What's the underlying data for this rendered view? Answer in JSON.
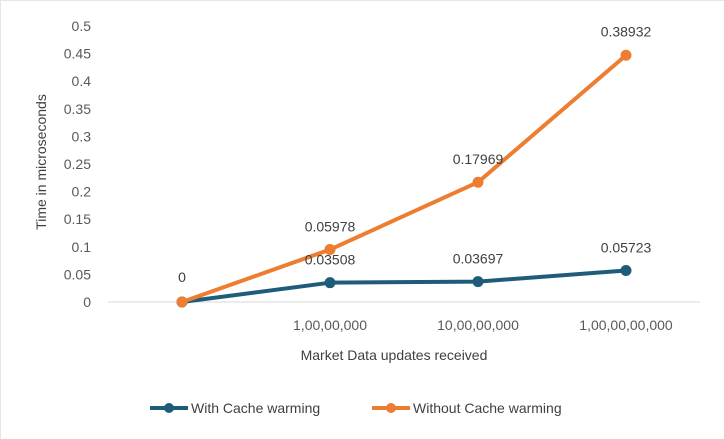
{
  "chart_data": {
    "type": "line",
    "title": "",
    "xlabel": "Market Data updates received",
    "ylabel": "Time in microseconds",
    "categories": [
      "",
      "1,00,00,000",
      "10,00,00,000",
      "1,00,00,00,000"
    ],
    "ylim": [
      0,
      0.5
    ],
    "y_ticks": [
      "0",
      "0.05",
      "0.1",
      "0.15",
      "0.2",
      "0.25",
      "0.3",
      "0.35",
      "0.4",
      "0.45",
      "0.5"
    ],
    "grid": false,
    "legend_position": "bottom",
    "series": [
      {
        "name": "With Cache warming",
        "color": "#1f5c7a",
        "values": [
          0,
          0.035,
          0.037,
          0.057
        ],
        "data_labels": [
          "",
          "0.03508",
          "0.03697",
          "0.05723"
        ]
      },
      {
        "name": "Without Cache warming",
        "color": "#ed7d31",
        "values": [
          0,
          0.095,
          0.217,
          0.447
        ],
        "data_labels": [
          "0",
          "0.05978",
          "0.17969",
          "0.38932"
        ]
      }
    ]
  }
}
